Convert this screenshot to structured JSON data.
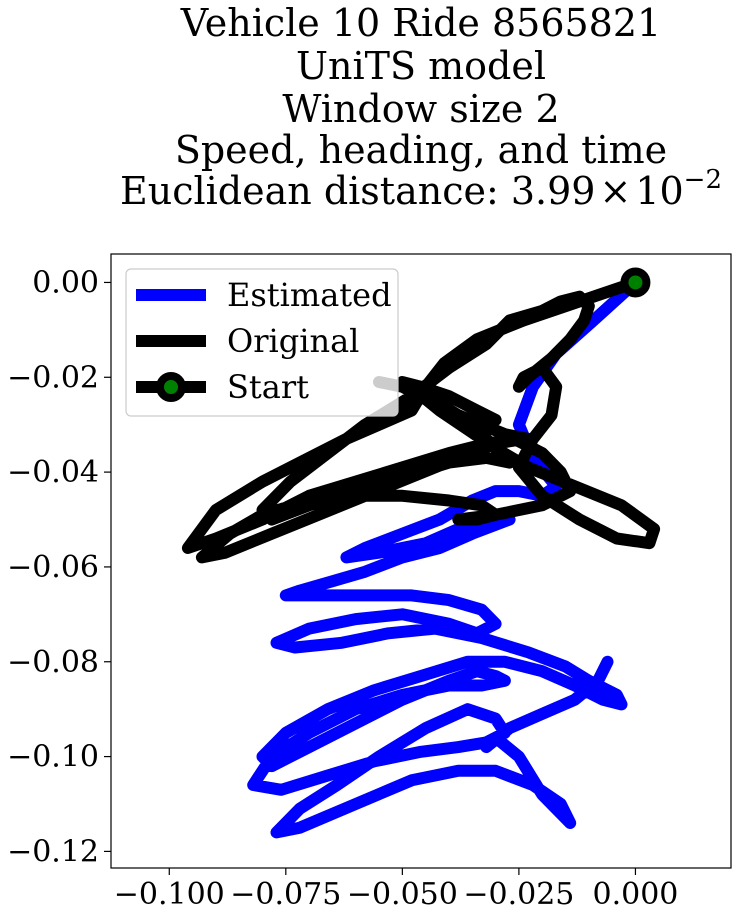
{
  "chart_data": {
    "type": "line",
    "title_lines": [
      "Vehicle 10 Ride 8565821",
      "UniTS model",
      "Window size 2",
      "Speed, heading, and time"
    ],
    "title_metric_prefix": "Euclidean distance: 3.99",
    "title_metric_times": "×",
    "title_metric_base": "10",
    "title_metric_exponent": "−2",
    "xlim": [
      -0.1125,
      0.0205
    ],
    "ylim": [
      -0.1235,
      0.006
    ],
    "xticks": [
      -0.1,
      -0.075,
      -0.05,
      -0.025,
      0.0
    ],
    "xtick_labels": [
      "−0.100",
      "−0.075",
      "−0.050",
      "−0.025",
      "0.000"
    ],
    "yticks": [
      0.0,
      -0.02,
      -0.04,
      -0.06,
      -0.08,
      -0.1,
      -0.12
    ],
    "ytick_labels": [
      "0.00",
      "−0.02",
      "−0.04",
      "−0.06",
      "−0.08",
      "−0.10",
      "−0.12"
    ],
    "grid": false,
    "legend_placement": "top-left",
    "series": [
      {
        "name": "Estimated",
        "color": "#0000ff",
        "x": [
          0.0,
          -0.009,
          -0.017,
          -0.022,
          -0.025,
          -0.022,
          -0.017,
          -0.02,
          -0.025,
          -0.03,
          -0.035,
          -0.042,
          -0.05,
          -0.058,
          -0.062,
          -0.055,
          -0.045,
          -0.038,
          -0.03,
          -0.027,
          -0.035,
          -0.042,
          -0.05,
          -0.058,
          -0.065,
          -0.072,
          -0.075,
          -0.068,
          -0.058,
          -0.048,
          -0.04,
          -0.033,
          -0.03,
          -0.034,
          -0.04,
          -0.05,
          -0.06,
          -0.07,
          -0.077,
          -0.073,
          -0.063,
          -0.053,
          -0.043,
          -0.033,
          -0.023,
          -0.015,
          -0.01,
          -0.004,
          -0.003,
          -0.007,
          -0.013,
          -0.02,
          -0.028,
          -0.036,
          -0.046,
          -0.056,
          -0.066,
          -0.075,
          -0.08,
          -0.078,
          -0.07,
          -0.06,
          -0.05,
          -0.04,
          -0.034,
          -0.03,
          -0.028,
          -0.033,
          -0.04,
          -0.05,
          -0.06,
          -0.07,
          -0.078,
          -0.082,
          -0.076,
          -0.066,
          -0.056,
          -0.046,
          -0.038,
          -0.032,
          -0.028,
          -0.03,
          -0.036,
          -0.045,
          -0.055,
          -0.064,
          -0.072,
          -0.077,
          -0.072,
          -0.06,
          -0.048,
          -0.038,
          -0.03,
          -0.022,
          -0.016,
          -0.014,
          -0.02,
          -0.025,
          -0.03,
          -0.032,
          -0.027,
          -0.02,
          -0.013,
          -0.008,
          -0.006
        ],
        "y": [
          0.0,
          -0.008,
          -0.015,
          -0.022,
          -0.03,
          -0.037,
          -0.043,
          -0.045,
          -0.044,
          -0.044,
          -0.046,
          -0.05,
          -0.053,
          -0.056,
          -0.058,
          -0.057,
          -0.055,
          -0.052,
          -0.049,
          -0.05,
          -0.053,
          -0.056,
          -0.058,
          -0.061,
          -0.063,
          -0.065,
          -0.066,
          -0.066,
          -0.066,
          -0.066,
          -0.067,
          -0.069,
          -0.072,
          -0.074,
          -0.072,
          -0.07,
          -0.071,
          -0.073,
          -0.076,
          -0.077,
          -0.076,
          -0.074,
          -0.073,
          -0.075,
          -0.078,
          -0.081,
          -0.084,
          -0.087,
          -0.089,
          -0.088,
          -0.085,
          -0.082,
          -0.08,
          -0.08,
          -0.083,
          -0.086,
          -0.09,
          -0.095,
          -0.1,
          -0.102,
          -0.098,
          -0.093,
          -0.088,
          -0.084,
          -0.082,
          -0.083,
          -0.084,
          -0.085,
          -0.085,
          -0.087,
          -0.09,
          -0.095,
          -0.1,
          -0.106,
          -0.107,
          -0.104,
          -0.101,
          -0.099,
          -0.098,
          -0.097,
          -0.095,
          -0.092,
          -0.09,
          -0.094,
          -0.1,
          -0.106,
          -0.111,
          -0.116,
          -0.115,
          -0.11,
          -0.105,
          -0.103,
          -0.103,
          -0.106,
          -0.11,
          -0.114,
          -0.108,
          -0.1,
          -0.096,
          -0.098,
          -0.094,
          -0.091,
          -0.088,
          -0.084,
          -0.08
        ]
      },
      {
        "name": "Original",
        "color": "#000000",
        "x": [
          0.0,
          -0.012,
          -0.024,
          -0.034,
          -0.041,
          -0.045,
          -0.048,
          -0.055,
          -0.062,
          -0.07,
          -0.08,
          -0.09,
          -0.096,
          -0.09,
          -0.08,
          -0.07,
          -0.06,
          -0.05,
          -0.04,
          -0.032,
          -0.026,
          -0.02,
          -0.016,
          -0.014,
          -0.02,
          -0.03,
          -0.038,
          -0.034,
          -0.03,
          -0.033,
          -0.04,
          -0.05,
          -0.06,
          -0.07,
          -0.08,
          -0.087,
          -0.093,
          -0.088,
          -0.078,
          -0.068,
          -0.058,
          -0.048,
          -0.038,
          -0.03,
          -0.024,
          -0.023,
          -0.028,
          -0.033,
          -0.038,
          -0.043,
          -0.05,
          -0.055,
          -0.05,
          -0.044,
          -0.038,
          -0.034,
          -0.03,
          -0.023,
          -0.013,
          -0.003,
          0.004,
          0.003,
          -0.004,
          -0.012,
          -0.02,
          -0.025,
          -0.022,
          -0.018,
          -0.017,
          -0.02,
          -0.024,
          -0.025,
          -0.023,
          -0.018,
          -0.014,
          -0.011,
          -0.01,
          -0.012,
          -0.016,
          -0.02,
          -0.027,
          -0.032,
          -0.04,
          -0.048,
          -0.058,
          -0.066,
          -0.074,
          -0.08,
          -0.078,
          -0.07,
          -0.06,
          -0.05,
          -0.04,
          -0.032,
          -0.027,
          -0.03,
          -0.036,
          -0.042,
          -0.047,
          -0.05,
          -0.046,
          -0.04,
          -0.034,
          -0.03
        ],
        "y": [
          0.0,
          -0.004,
          -0.008,
          -0.012,
          -0.017,
          -0.022,
          -0.027,
          -0.03,
          -0.033,
          -0.037,
          -0.042,
          -0.048,
          -0.056,
          -0.054,
          -0.05,
          -0.045,
          -0.042,
          -0.039,
          -0.036,
          -0.034,
          -0.033,
          -0.036,
          -0.04,
          -0.044,
          -0.047,
          -0.049,
          -0.05,
          -0.05,
          -0.049,
          -0.047,
          -0.046,
          -0.045,
          -0.045,
          -0.046,
          -0.049,
          -0.053,
          -0.058,
          -0.057,
          -0.053,
          -0.049,
          -0.045,
          -0.041,
          -0.037,
          -0.034,
          -0.033,
          -0.033,
          -0.032,
          -0.03,
          -0.028,
          -0.025,
          -0.022,
          -0.021,
          -0.022,
          -0.025,
          -0.028,
          -0.031,
          -0.035,
          -0.039,
          -0.043,
          -0.047,
          -0.052,
          -0.055,
          -0.054,
          -0.05,
          -0.045,
          -0.039,
          -0.033,
          -0.028,
          -0.022,
          -0.018,
          -0.02,
          -0.022,
          -0.02,
          -0.016,
          -0.012,
          -0.008,
          -0.005,
          -0.003,
          -0.004,
          -0.006,
          -0.008,
          -0.013,
          -0.018,
          -0.024,
          -0.03,
          -0.036,
          -0.042,
          -0.048,
          -0.05,
          -0.047,
          -0.044,
          -0.041,
          -0.038,
          -0.037,
          -0.038,
          -0.035,
          -0.031,
          -0.027,
          -0.023,
          -0.021,
          -0.022,
          -0.024,
          -0.027,
          -0.029
        ]
      }
    ],
    "start_point": {
      "x": 0.0,
      "y": 0.0,
      "fill": "#008000",
      "edge": "#000000"
    },
    "legend": {
      "entries": [
        {
          "label": "Estimated",
          "color": "#0000ff",
          "marker": false
        },
        {
          "label": "Original",
          "color": "#000000",
          "marker": false
        },
        {
          "label": "Start",
          "color": "#000000",
          "marker": true,
          "marker_fill": "#008000"
        }
      ]
    }
  }
}
